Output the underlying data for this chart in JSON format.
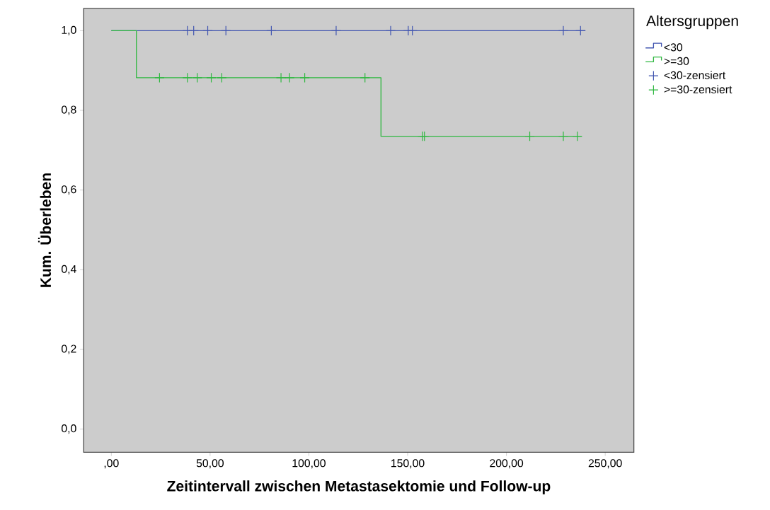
{
  "chart_data": {
    "type": "step",
    "xlabel": "Zeitintervall zwischen Metastasektomie und Follow-up",
    "ylabel": "Kum. Überleben",
    "legend_title": "Altersgruppen",
    "legend": "right",
    "grid": false,
    "xlim": [
      -14,
      264.5
    ],
    "ylim": [
      -0.058,
      1.056
    ],
    "xticks": [
      {
        "value": 0,
        "label": ",00"
      },
      {
        "value": 50,
        "label": "50,00"
      },
      {
        "value": 100,
        "label": "100,00"
      },
      {
        "value": 150,
        "label": "150,00"
      },
      {
        "value": 200,
        "label": "200,00"
      },
      {
        "value": 250,
        "label": "250,00"
      }
    ],
    "yticks": [
      {
        "value": 0,
        "label": "0,0"
      },
      {
        "value": 0.2,
        "label": "0,2"
      },
      {
        "value": 0.4,
        "label": "0,4"
      },
      {
        "value": 0.6,
        "label": "0,6"
      },
      {
        "value": 0.8,
        "label": "0,8"
      },
      {
        "value": 1.0,
        "label": "1,0"
      }
    ],
    "series": [
      {
        "name": "<30",
        "color": "#4155b0",
        "x": [
          0,
          240
        ],
        "values": [
          1.0,
          1.0
        ]
      },
      {
        "name": ">=30",
        "color": "#2fb840",
        "x": [
          0,
          12.7,
          136.5,
          238
        ],
        "values": [
          1.0,
          0.882,
          0.735,
          0.735
        ]
      },
      {
        "name": "<30-zensiert",
        "type": "scatter",
        "marker": "cross",
        "color": "#4155b0",
        "x": [
          38.5,
          41.7,
          48.8,
          58,
          81,
          113.8,
          141.4,
          150.3,
          152.4,
          228.8,
          237.5
        ],
        "values": [
          1,
          1,
          1,
          1,
          1,
          1,
          1,
          1,
          1,
          1,
          1
        ]
      },
      {
        "name": ">=30-zensiert",
        "type": "scatter",
        "marker": "cross",
        "color": "#2fb840",
        "x": [
          24.4,
          38.5,
          43.5,
          50.6,
          55.9,
          85.9,
          90.2,
          97.9,
          128.4,
          157.5,
          158.5,
          211.8,
          228.8,
          235.9
        ],
        "values": [
          0.882,
          0.882,
          0.882,
          0.882,
          0.882,
          0.882,
          0.882,
          0.882,
          0.882,
          0.735,
          0.735,
          0.735,
          0.735,
          0.735
        ]
      }
    ]
  }
}
